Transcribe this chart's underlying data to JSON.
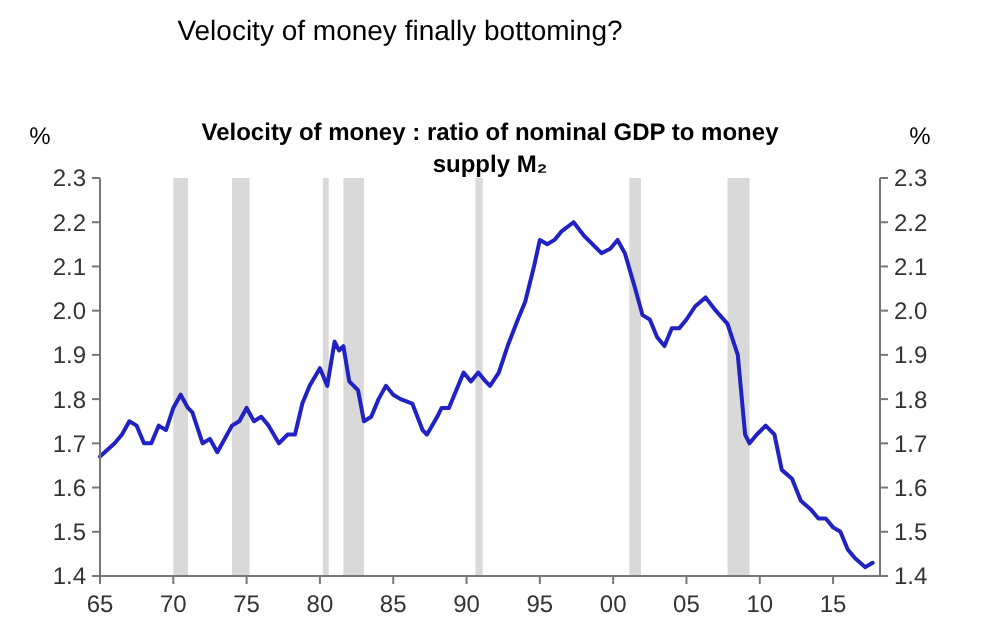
{
  "chart_data": {
    "type": "line",
    "title": "Velocity of money finally bottoming?",
    "subtitle": "Velocity of money : ratio of nominal GDP to money supply M₂",
    "ylabel": "%",
    "y2label": "%",
    "xlim": [
      1965,
      2018.2
    ],
    "xticks": [
      {
        "value": 1965,
        "label": "65"
      },
      {
        "value": 1970,
        "label": "70"
      },
      {
        "value": 1975,
        "label": "75"
      },
      {
        "value": 1980,
        "label": "80"
      },
      {
        "value": 1985,
        "label": "85"
      },
      {
        "value": 1990,
        "label": "90"
      },
      {
        "value": 1995,
        "label": "95"
      },
      {
        "value": 2000,
        "label": "00"
      },
      {
        "value": 2005,
        "label": "05"
      },
      {
        "value": 2010,
        "label": "10"
      },
      {
        "value": 2015,
        "label": "15"
      }
    ],
    "ylim": [
      1.4,
      2.3
    ],
    "yticks": [
      1.4,
      1.5,
      1.6,
      1.7,
      1.8,
      1.9,
      {
        "value": 2,
        "label": "2.0"
      },
      2.1,
      2.2,
      2.3
    ],
    "y2lim": [
      1.4,
      2.3
    ],
    "y2ticks": [
      1.4,
      1.5,
      1.6,
      1.7,
      1.8,
      1.9,
      {
        "value": 2,
        "label": "2.0"
      },
      2.1,
      2.2,
      2.3
    ],
    "grid": false,
    "marker": "none",
    "line_style": "solid",
    "bands": [
      {
        "axis": "x",
        "from": 1970,
        "to": 1971,
        "color": "#d9d9d9"
      },
      {
        "axis": "x",
        "from": 1974,
        "to": 1975.2,
        "color": "#d9d9d9"
      },
      {
        "axis": "x",
        "from": 1980.2,
        "to": 1980.6,
        "color": "#d9d9d9"
      },
      {
        "axis": "x",
        "from": 1981.6,
        "to": 1983,
        "color": "#d9d9d9"
      },
      {
        "axis": "x",
        "from": 1990.6,
        "to": 1991.1,
        "color": "#d9d9d9"
      },
      {
        "axis": "x",
        "from": 2001.1,
        "to": 2001.9,
        "color": "#d9d9d9"
      },
      {
        "axis": "x",
        "from": 2007.8,
        "to": 2009.3,
        "color": "#d9d9d9"
      }
    ],
    "series": [
      {
        "color": "#2222c4",
        "x": [
          1965,
          1966,
          1966.5,
          1967,
          1967.5,
          1968,
          1968.5,
          1969,
          1969.5,
          1970,
          1970.5,
          1971,
          1971.3,
          1972,
          1972.5,
          1973,
          1973.5,
          1974,
          1974.5,
          1975,
          1975.5,
          1976,
          1976.5,
          1977.2,
          1977.8,
          1978.3,
          1978.8,
          1979.3,
          1980,
          1980.5,
          1981,
          1981.3,
          1981.6,
          1982,
          1982.6,
          1983,
          1983.5,
          1984,
          1984.5,
          1985,
          1985.5,
          1986.3,
          1987,
          1987.3,
          1988,
          1988.3,
          1988.8,
          1989.3,
          1989.8,
          1990.3,
          1990.8,
          1991.3,
          1991.6,
          1992.2,
          1992.8,
          1993.5,
          1994,
          1994.6,
          1995,
          1995.5,
          1996,
          1996.5,
          1997.3,
          1998,
          1998.6,
          1999.2,
          1999.8,
          2000.3,
          2000.8,
          2001.5,
          2002,
          2002.5,
          2003,
          2003.5,
          2004,
          2004.5,
          2005,
          2005.6,
          2006.3,
          2007,
          2007.8,
          2008.5,
          2009,
          2009.3,
          2009.8,
          2010.4,
          2011,
          2011.5,
          2012.2,
          2012.8,
          2013.5,
          2014,
          2014.5,
          2015,
          2015.5,
          2016,
          2016.5,
          2017.2,
          2017.7
        ],
        "values": [
          1.67,
          1.7,
          1.72,
          1.75,
          1.74,
          1.7,
          1.7,
          1.74,
          1.73,
          1.78,
          1.81,
          1.78,
          1.77,
          1.7,
          1.71,
          1.68,
          1.71,
          1.74,
          1.75,
          1.78,
          1.75,
          1.76,
          1.74,
          1.7,
          1.72,
          1.72,
          1.79,
          1.83,
          1.87,
          1.83,
          1.93,
          1.91,
          1.92,
          1.84,
          1.82,
          1.75,
          1.76,
          1.8,
          1.83,
          1.81,
          1.8,
          1.79,
          1.73,
          1.72,
          1.76,
          1.78,
          1.78,
          1.82,
          1.86,
          1.84,
          1.86,
          1.84,
          1.83,
          1.86,
          1.92,
          1.98,
          2.02,
          2.1,
          2.16,
          2.15,
          2.16,
          2.18,
          2.2,
          2.17,
          2.15,
          2.13,
          2.14,
          2.16,
          2.13,
          2.05,
          1.99,
          1.98,
          1.94,
          1.92,
          1.96,
          1.96,
          1.98,
          2.01,
          2.03,
          2,
          1.97,
          1.9,
          1.72,
          1.7,
          1.72,
          1.74,
          1.72,
          1.64,
          1.62,
          1.57,
          1.55,
          1.53,
          1.53,
          1.51,
          1.5,
          1.46,
          1.44,
          1.42,
          1.43
        ]
      }
    ]
  }
}
